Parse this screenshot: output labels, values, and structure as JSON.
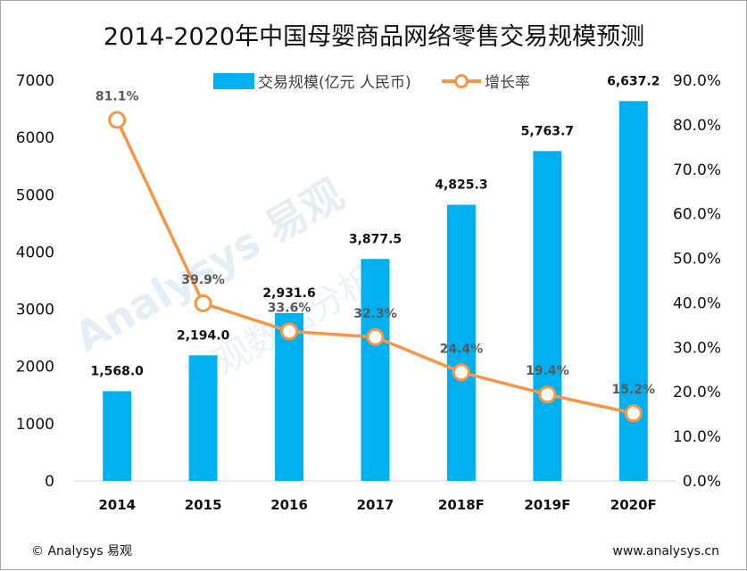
{
  "chart_data": {
    "type": "bar",
    "title": "2014-2020年中国母婴商品网络零售交易规模预测",
    "categories": [
      "2014",
      "2015",
      "2016",
      "2017",
      "2018F",
      "2019F",
      "2020F"
    ],
    "series": [
      {
        "name": "交易规模(亿元 人民币)",
        "type": "bar",
        "axis": "left",
        "color": "#00b0f0",
        "values": [
          1568.0,
          2194.0,
          2931.6,
          3877.5,
          4825.3,
          5763.7,
          6637.2
        ],
        "labels": [
          "1,568.0",
          "2,194.0",
          "2,931.6",
          "3,877.5",
          "4,825.3",
          "5,763.7",
          "6,637.2"
        ]
      },
      {
        "name": "增长率",
        "type": "line",
        "axis": "right",
        "color": "#f79646",
        "values": [
          81.1,
          39.9,
          33.6,
          32.3,
          24.4,
          19.4,
          15.2
        ],
        "labels": [
          "81.1%",
          "39.9%",
          "33.6%",
          "32.3%",
          "24.4%",
          "19.4%",
          "15.2%"
        ]
      }
    ],
    "y_left": {
      "ylim": [
        0,
        7000
      ],
      "ticks": [
        "0",
        "1000",
        "2000",
        "3000",
        "4000",
        "5000",
        "6000",
        "7000"
      ]
    },
    "y_right": {
      "ylim": [
        0,
        90
      ],
      "unit": "%",
      "ticks": [
        "0.0%",
        "10.0%",
        "20.0%",
        "30.0%",
        "40.0%",
        "50.0%",
        "60.0%",
        "70.0%",
        "80.0%",
        "90.0%"
      ]
    },
    "grid": false,
    "legend_position": "top-center"
  },
  "footer": {
    "left": "© Analysys 易观",
    "right": "www.analysys.cn"
  },
  "watermark": {
    "brand": "Analysys 易观",
    "sub": "易观数据分析"
  }
}
